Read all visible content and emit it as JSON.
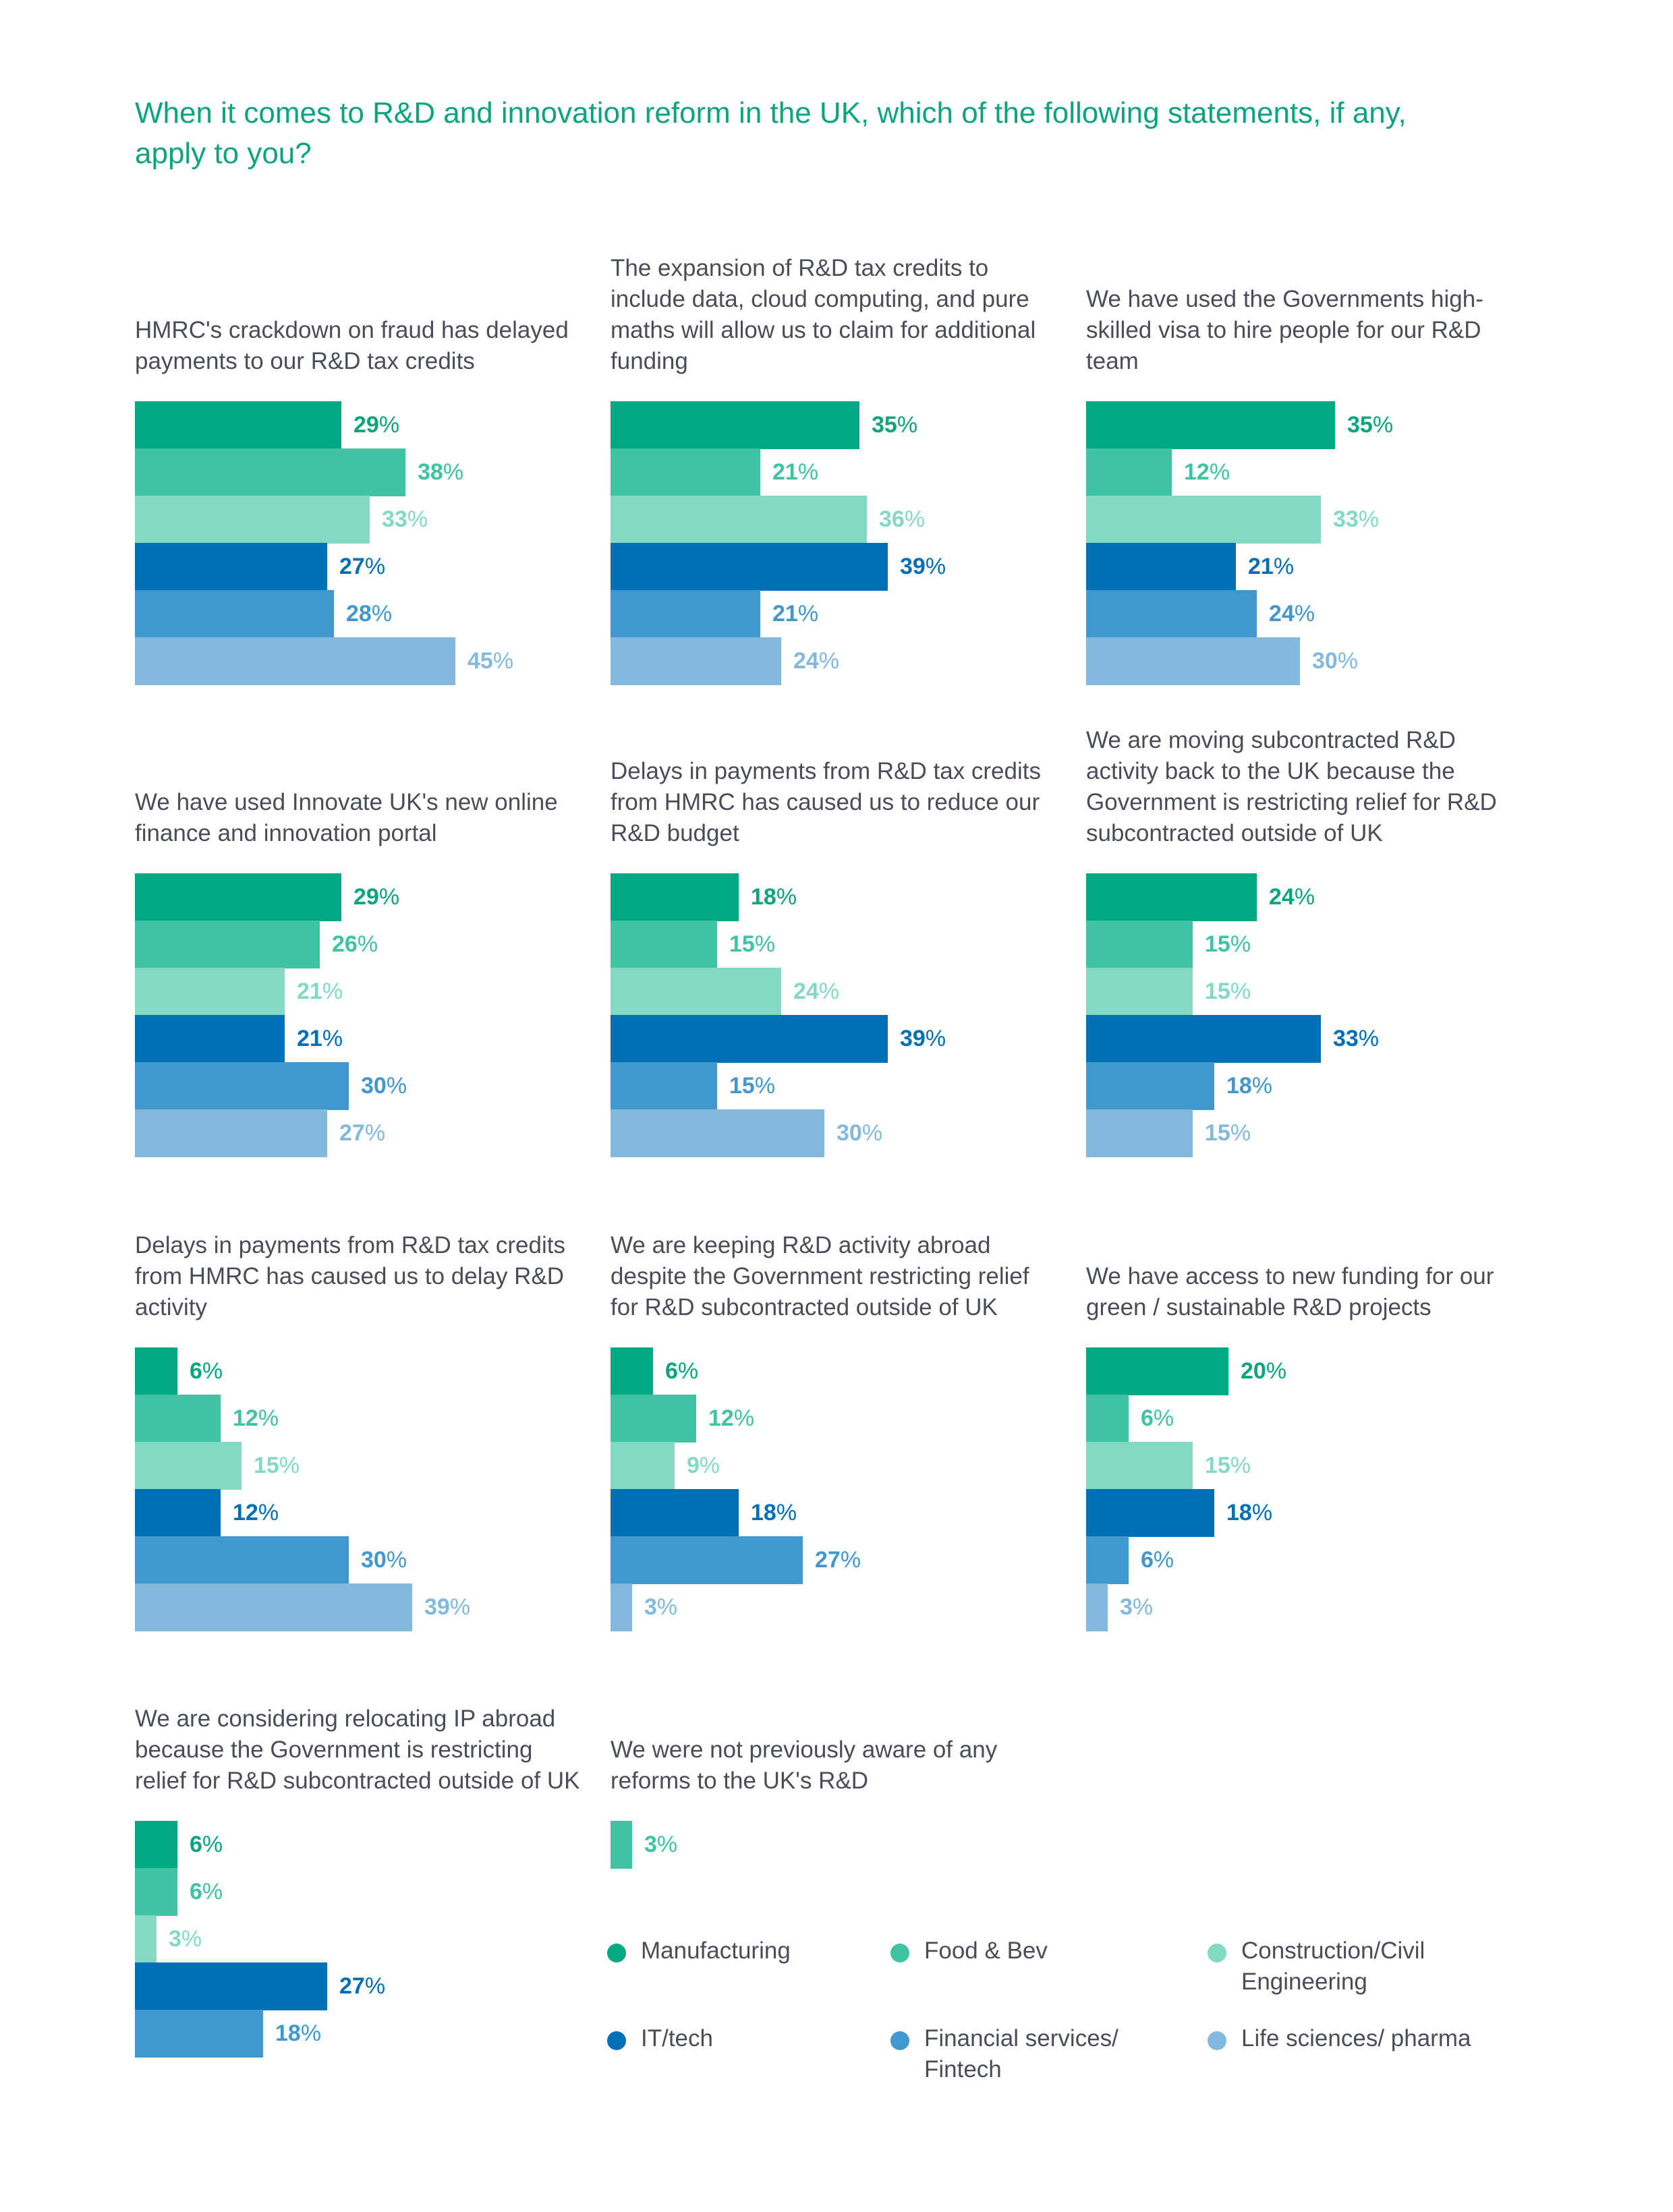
{
  "title": "When it comes to R&D and innovation reform in the UK, which of the following statements, if any, apply to you?",
  "sectors": [
    "Manufacturing",
    "Food & Bev",
    "Construction/Civil Engineering",
    "IT/tech",
    "Financial services/ Fintech",
    "Life sciences/ pharma"
  ],
  "colors": {
    "bars": [
      "#00a884",
      "#3fc3a3",
      "#84d9c4",
      "#0070b6",
      "#4198cf",
      "#82b9dc"
    ],
    "labels": [
      "#0aa57f",
      "#3fc3a3",
      "#84d9c4",
      "#0070b6",
      "#4198cf",
      "#82b9dc"
    ],
    "title": "#0aa57f",
    "text": "#4a4d57"
  },
  "chart_data": [
    {
      "type": "bar",
      "title": "HMRC's crackdown on fraud has delayed payments to our R&D tax credits",
      "categories": [
        "Manufacturing",
        "Food & Bev",
        "Construction/Civil Engineering",
        "IT/tech",
        "Financial services/ Fintech",
        "Life sciences/ pharma"
      ],
      "values": [
        29,
        38,
        33,
        27,
        28,
        45
      ],
      "unit": "%"
    },
    {
      "type": "bar",
      "title": "The expansion of R&D tax credits to include data, cloud computing, and pure maths will allow us to claim for additional funding",
      "categories": [
        "Manufacturing",
        "Food & Bev",
        "Construction/Civil Engineering",
        "IT/tech",
        "Financial services/ Fintech",
        "Life sciences/ pharma"
      ],
      "values": [
        35,
        21,
        36,
        39,
        21,
        24
      ],
      "unit": "%"
    },
    {
      "type": "bar",
      "title": "We have used the Governments high-skilled visa to hire people for our R&D team",
      "categories": [
        "Manufacturing",
        "Food & Bev",
        "Construction/Civil Engineering",
        "IT/tech",
        "Financial services/ Fintech",
        "Life sciences/ pharma"
      ],
      "values": [
        35,
        12,
        33,
        21,
        24,
        30
      ],
      "unit": "%"
    },
    {
      "type": "bar",
      "title": "We have used Innovate UK's new online finance and innovation portal",
      "categories": [
        "Manufacturing",
        "Food & Bev",
        "Construction/Civil Engineering",
        "IT/tech",
        "Financial services/ Fintech",
        "Life sciences/ pharma"
      ],
      "values": [
        29,
        26,
        21,
        21,
        30,
        27
      ],
      "unit": "%"
    },
    {
      "type": "bar",
      "title": "Delays in payments from R&D tax credits from HMRC has caused us to reduce our R&D budget",
      "categories": [
        "Manufacturing",
        "Food & Bev",
        "Construction/Civil Engineering",
        "IT/tech",
        "Financial services/ Fintech",
        "Life sciences/ pharma"
      ],
      "values": [
        18,
        15,
        24,
        39,
        15,
        30
      ],
      "unit": "%"
    },
    {
      "type": "bar",
      "title": "We are moving subcontracted R&D activity back to the UK because the Government is restricting relief for R&D subcontracted outside of UK",
      "categories": [
        "Manufacturing",
        "Food & Bev",
        "Construction/Civil Engineering",
        "IT/tech",
        "Financial services/ Fintech",
        "Life sciences/ pharma"
      ],
      "values": [
        24,
        15,
        15,
        33,
        18,
        15
      ],
      "unit": "%"
    },
    {
      "type": "bar",
      "title": "Delays in payments from R&D tax credits from HMRC has caused us to delay R&D activity",
      "categories": [
        "Manufacturing",
        "Food & Bev",
        "Construction/Civil Engineering",
        "IT/tech",
        "Financial services/ Fintech",
        "Life sciences/ pharma"
      ],
      "values": [
        6,
        12,
        15,
        12,
        30,
        39
      ],
      "unit": "%"
    },
    {
      "type": "bar",
      "title": "We are keeping R&D activity abroad despite the Government restricting relief for R&D subcontracted outside of UK",
      "categories": [
        "Manufacturing",
        "Food & Bev",
        "Construction/Civil Engineering",
        "IT/tech",
        "Financial services/ Fintech",
        "Life sciences/ pharma"
      ],
      "values": [
        6,
        12,
        9,
        18,
        27,
        3
      ],
      "unit": "%"
    },
    {
      "type": "bar",
      "title": "We have access to new funding for our green / sustainable R&D projects",
      "categories": [
        "Manufacturing",
        "Food & Bev",
        "Construction/Civil Engineering",
        "IT/tech",
        "Financial services/ Fintech",
        "Life sciences/ pharma"
      ],
      "values": [
        20,
        6,
        15,
        18,
        6,
        3
      ],
      "unit": "%"
    },
    {
      "type": "bar",
      "title": "We are considering relocating IP abroad because the Government is restricting relief for R&D subcontracted outside of UK",
      "categories": [
        "Manufacturing",
        "Food & Bev",
        "Construction/Civil Engineering",
        "IT/tech",
        "Financial services/ Fintech"
      ],
      "values": [
        6,
        6,
        3,
        27,
        18
      ],
      "unit": "%"
    },
    {
      "type": "bar",
      "title": "We were not previously aware of any reforms to the UK's R&D",
      "categories": [
        "Food & Bev"
      ],
      "sector_index": [
        1
      ],
      "values": [
        3
      ],
      "unit": "%"
    }
  ]
}
